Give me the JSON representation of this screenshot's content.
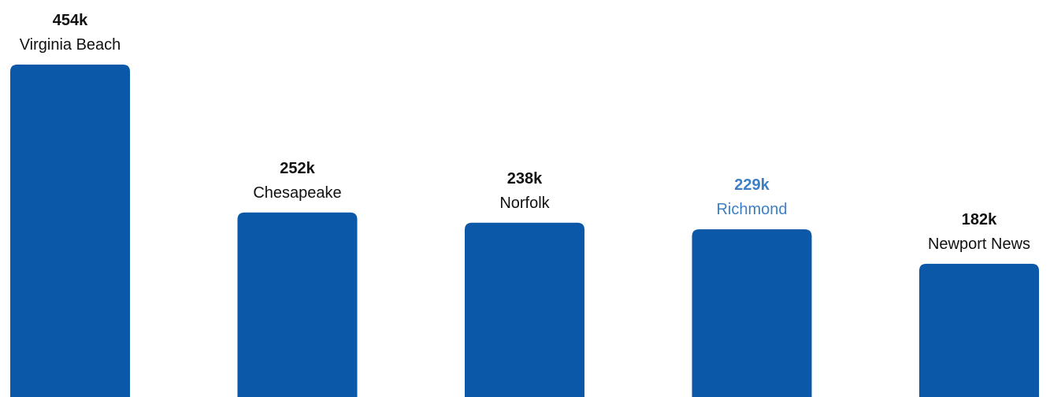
{
  "chart_data": {
    "type": "bar",
    "categories": [
      "Virginia Beach",
      "Chesapeake",
      "Norfolk",
      "Richmond",
      "Newport News"
    ],
    "values": [
      454,
      252,
      238,
      229,
      182
    ],
    "value_labels": [
      "454k",
      "252k",
      "238k",
      "229k",
      "182k"
    ],
    "highlighted_category": "Richmond",
    "title": "",
    "xlabel": "",
    "ylabel": "",
    "grid": false,
    "legend": "none"
  },
  "colors": {
    "bar": "#0b57a8",
    "label_text": "#111111",
    "highlight_text": "#3d7fc4",
    "background": "#ffffff"
  }
}
